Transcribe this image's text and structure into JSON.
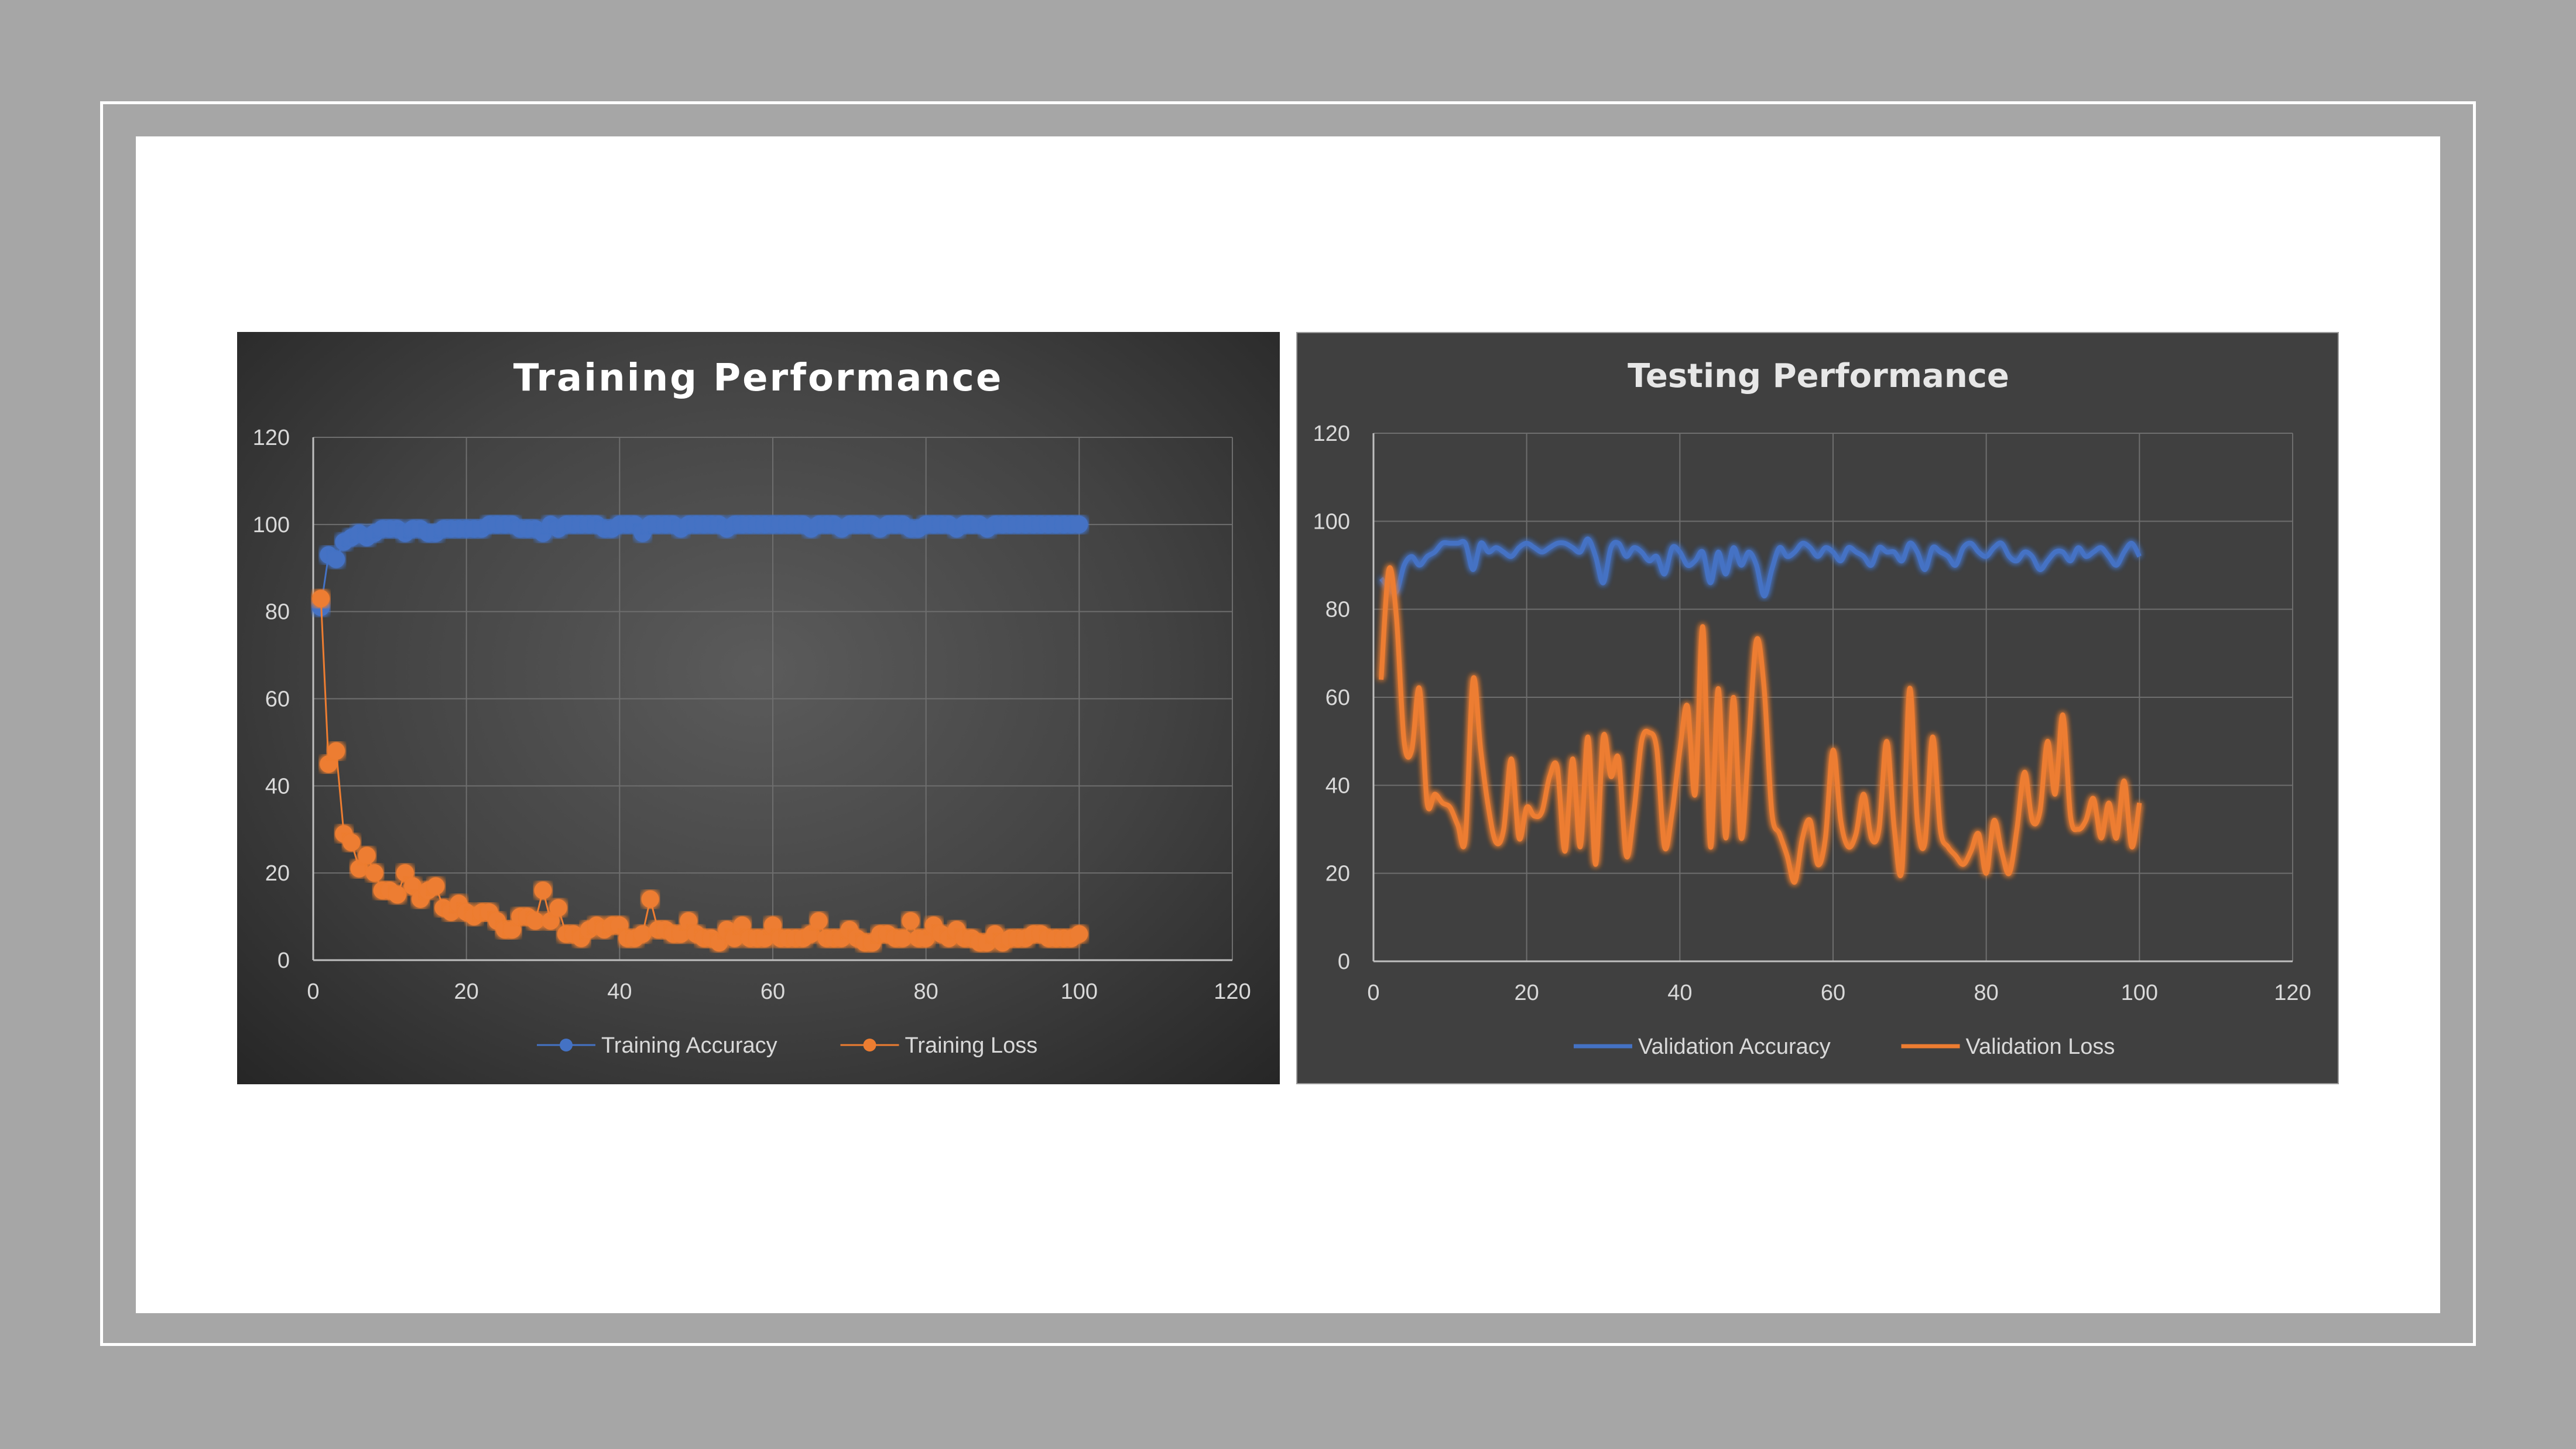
{
  "chart_data": [
    {
      "type": "line",
      "title": "Training Performance",
      "markers": true,
      "xlim": [
        0,
        120
      ],
      "ylim": [
        0,
        120
      ],
      "x_ticks": [
        "0",
        "20",
        "40",
        "60",
        "80",
        "100",
        "120"
      ],
      "y_ticks": [
        "0",
        "20",
        "40",
        "60",
        "80",
        "100",
        "120"
      ],
      "grid": true,
      "legend_position": "bottom",
      "x": [
        1,
        2,
        3,
        4,
        5,
        6,
        7,
        8,
        9,
        10,
        11,
        12,
        13,
        14,
        15,
        16,
        17,
        18,
        19,
        20,
        21,
        22,
        23,
        24,
        25,
        26,
        27,
        28,
        29,
        30,
        31,
        32,
        33,
        34,
        35,
        36,
        37,
        38,
        39,
        40,
        41,
        42,
        43,
        44,
        45,
        46,
        47,
        48,
        49,
        50,
        51,
        52,
        53,
        54,
        55,
        56,
        57,
        58,
        59,
        60,
        61,
        62,
        63,
        64,
        65,
        66,
        67,
        68,
        69,
        70,
        71,
        72,
        73,
        74,
        75,
        76,
        77,
        78,
        79,
        80,
        81,
        82,
        83,
        84,
        85,
        86,
        87,
        88,
        89,
        90,
        91,
        92,
        93,
        94,
        95,
        96,
        97,
        98,
        99,
        100
      ],
      "series": [
        {
          "name": "Training Accuracy",
          "color": "#4472c4",
          "values": [
            81,
            93,
            92,
            96,
            97,
            98,
            97,
            98,
            99,
            99,
            99,
            98,
            99,
            99,
            98,
            98,
            99,
            99,
            99,
            99,
            99,
            99,
            100,
            100,
            100,
            100,
            99,
            99,
            99,
            98,
            100,
            99,
            100,
            100,
            100,
            100,
            100,
            99,
            99,
            100,
            100,
            100,
            98,
            100,
            100,
            100,
            100,
            99,
            100,
            100,
            100,
            100,
            100,
            99,
            100,
            100,
            100,
            100,
            100,
            100,
            100,
            100,
            100,
            100,
            99,
            100,
            100,
            100,
            99,
            100,
            100,
            100,
            100,
            99,
            100,
            100,
            100,
            99,
            99,
            100,
            100,
            100,
            100,
            99,
            100,
            100,
            100,
            99,
            100,
            100,
            100,
            100,
            100,
            100,
            100,
            100,
            100,
            100,
            100,
            100
          ]
        },
        {
          "name": "Training Loss",
          "color": "#ed7d31",
          "values": [
            83,
            45,
            48,
            29,
            27,
            21,
            24,
            20,
            16,
            16,
            15,
            20,
            17,
            14,
            16,
            17,
            12,
            11,
            13,
            11,
            10,
            11,
            11,
            9,
            7,
            7,
            10,
            10,
            9,
            16,
            9,
            12,
            6,
            6,
            5,
            7,
            8,
            7,
            8,
            8,
            5,
            5,
            6,
            14,
            7,
            7,
            6,
            6,
            9,
            6,
            5,
            5,
            4,
            7,
            5,
            8,
            5,
            5,
            5,
            8,
            5,
            5,
            5,
            5,
            6,
            9,
            5,
            5,
            5,
            7,
            5,
            4,
            4,
            6,
            6,
            5,
            5,
            9,
            5,
            5,
            8,
            6,
            5,
            7,
            5,
            5,
            4,
            4,
            6,
            4,
            5,
            5,
            5,
            6,
            6,
            5,
            5,
            5,
            5,
            6
          ]
        }
      ]
    },
    {
      "type": "line",
      "title": "Testing Performance",
      "markers": false,
      "xlim": [
        0,
        120
      ],
      "ylim": [
        0,
        120
      ],
      "x_ticks": [
        "0",
        "20",
        "40",
        "60",
        "80",
        "100",
        "120"
      ],
      "y_ticks": [
        "0",
        "20",
        "40",
        "60",
        "80",
        "100",
        "120"
      ],
      "grid": true,
      "legend_position": "bottom",
      "x": [
        1,
        2,
        3,
        4,
        5,
        6,
        7,
        8,
        9,
        10,
        11,
        12,
        13,
        14,
        15,
        16,
        17,
        18,
        19,
        20,
        21,
        22,
        23,
        24,
        25,
        26,
        27,
        28,
        29,
        30,
        31,
        32,
        33,
        34,
        35,
        36,
        37,
        38,
        39,
        40,
        41,
        42,
        43,
        44,
        45,
        46,
        47,
        48,
        49,
        50,
        51,
        52,
        53,
        54,
        55,
        56,
        57,
        58,
        59,
        60,
        61,
        62,
        63,
        64,
        65,
        66,
        67,
        68,
        69,
        70,
        71,
        72,
        73,
        74,
        75,
        76,
        77,
        78,
        79,
        80,
        81,
        82,
        83,
        84,
        85,
        86,
        87,
        88,
        89,
        90,
        91,
        92,
        93,
        94,
        95,
        96,
        97,
        98,
        99,
        100
      ],
      "series": [
        {
          "name": "Validation Accuracy",
          "color": "#4472c4",
          "values": [
            87,
            85,
            84,
            90,
            92,
            90,
            92,
            93,
            95,
            95,
            95,
            95,
            89,
            95,
            93,
            94,
            93,
            92,
            94,
            95,
            94,
            93,
            94,
            95,
            95,
            94,
            93,
            96,
            92,
            86,
            94,
            95,
            92,
            94,
            93,
            91,
            92,
            88,
            94,
            93,
            90,
            91,
            93,
            86,
            93,
            88,
            94,
            90,
            93,
            90,
            83,
            89,
            94,
            92,
            93,
            95,
            94,
            92,
            94,
            93,
            91,
            94,
            93,
            92,
            90,
            94,
            93,
            93,
            91,
            95,
            93,
            89,
            94,
            93,
            92,
            90,
            94,
            95,
            93,
            92,
            94,
            95,
            92,
            91,
            93,
            92,
            89,
            91,
            93,
            93,
            91,
            94,
            92,
            93,
            94,
            92,
            90,
            93,
            95,
            92
          ]
        },
        {
          "name": "Validation Loss",
          "color": "#ed7d31",
          "values": [
            64,
            89,
            78,
            50,
            48,
            62,
            36,
            38,
            36,
            35,
            31,
            28,
            64,
            48,
            35,
            27,
            30,
            46,
            28,
            35,
            33,
            34,
            42,
            44,
            25,
            46,
            26,
            51,
            22,
            51,
            42,
            46,
            24,
            34,
            50,
            52,
            48,
            26,
            34,
            48,
            58,
            38,
            76,
            26,
            62,
            28,
            60,
            28,
            50,
            73,
            62,
            34,
            29,
            24,
            18,
            28,
            32,
            22,
            28,
            48,
            32,
            26,
            29,
            38,
            28,
            30,
            50,
            30,
            21,
            62,
            32,
            27,
            51,
            30,
            26,
            24,
            22,
            25,
            29,
            20,
            32,
            25,
            20,
            30,
            43,
            32,
            34,
            50,
            38,
            56,
            33,
            30,
            32,
            37,
            28,
            36,
            28,
            41,
            26,
            36
          ]
        }
      ]
    }
  ]
}
